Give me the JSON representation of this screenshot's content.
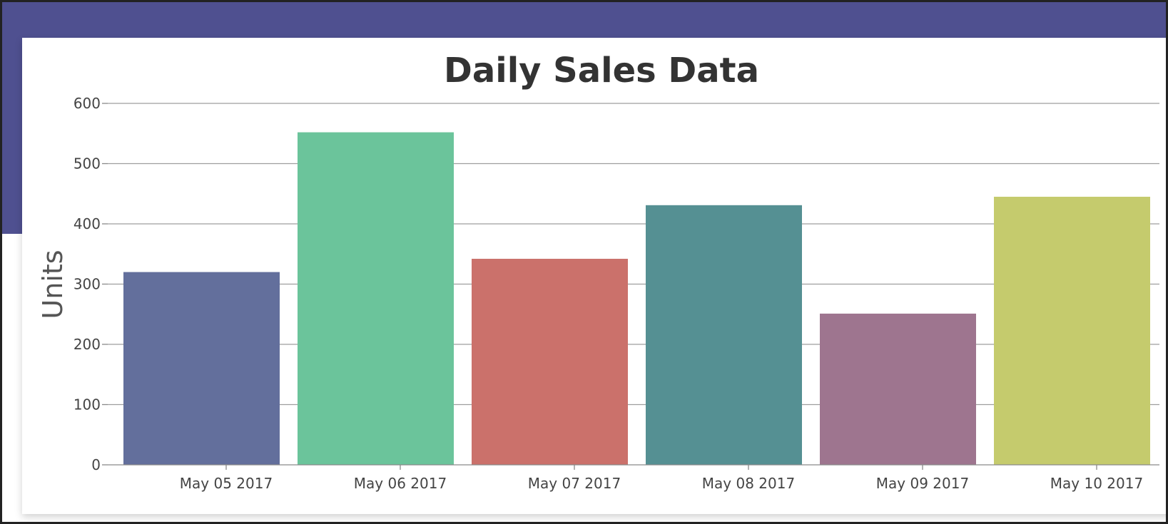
{
  "page": {
    "header_color": "#4f5090"
  },
  "chart_data": {
    "type": "bar",
    "title": "Daily Sales Data",
    "ylabel": "Units",
    "xlabel": "",
    "categories": [
      "May 05 2017",
      "May 06 2017",
      "May 07 2017",
      "May 08 2017",
      "May 09 2017",
      "May 10 2017"
    ],
    "values": [
      320,
      552,
      342,
      431,
      251,
      445
    ],
    "colors": [
      "#636f9c",
      "#6bc49b",
      "#cb716b",
      "#559093",
      "#9e758f",
      "#c5cb6d"
    ],
    "ylim": [
      0,
      600
    ],
    "yticks": [
      0,
      100,
      200,
      300,
      400,
      500,
      600
    ],
    "yticks_text": [
      "0",
      "100",
      "200",
      "300",
      "400",
      "500",
      "600"
    ],
    "grid": true,
    "legend": "none"
  }
}
